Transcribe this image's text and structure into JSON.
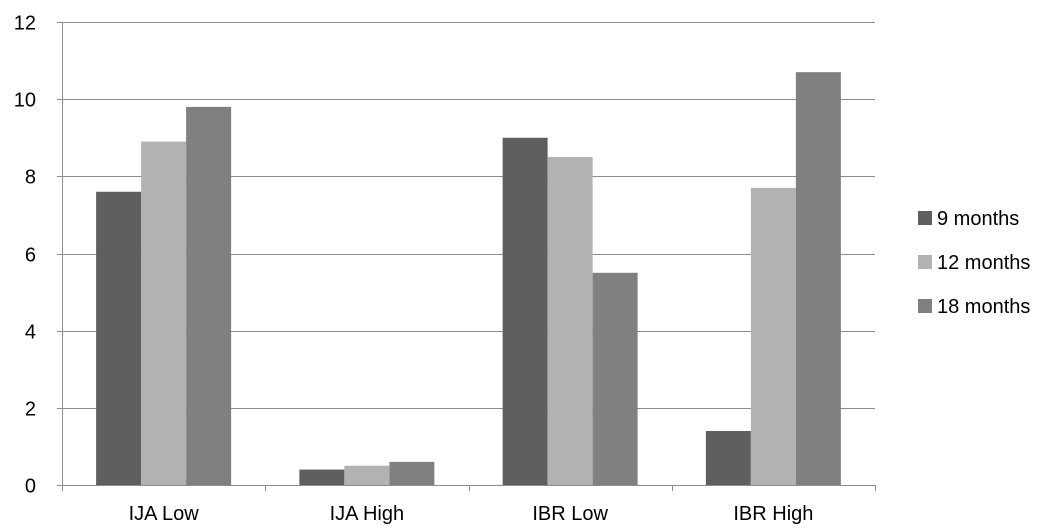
{
  "chart_data": {
    "type": "bar",
    "title": "",
    "xlabel": "",
    "ylabel": "",
    "categories": [
      "IJA Low",
      "IJA High",
      "IBR Low",
      "IBR High"
    ],
    "series": [
      {
        "name": "9 months",
        "values": [
          7.6,
          0.4,
          9.0,
          1.4
        ],
        "color": "#5f5f5f"
      },
      {
        "name": "12 months",
        "values": [
          8.9,
          0.5,
          8.5,
          7.7
        ],
        "color": "#b2b2b2"
      },
      {
        "name": "18 months",
        "values": [
          9.8,
          0.6,
          5.5,
          10.7
        ],
        "color": "#808080"
      }
    ],
    "ylim": [
      0,
      12
    ],
    "yticks": [
      "0",
      "2",
      "4",
      "6",
      "8",
      "10",
      "12"
    ],
    "grid": true,
    "legend_position": "right",
    "colors": {
      "gridline": "#8c8c8c",
      "axis": "#8c8c8c"
    }
  }
}
